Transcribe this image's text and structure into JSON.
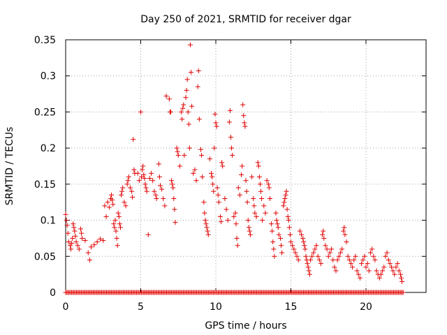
{
  "chart_data": {
    "type": "scatter",
    "title": "Day 250 of 2021, SRMTID for receiver dgar",
    "xlabel": "GPS time / hours",
    "ylabel": "SRMTID / TECUs",
    "xlim": [
      0,
      24
    ],
    "ylim": [
      0,
      0.35
    ],
    "x_ticks": [
      0,
      5,
      10,
      15,
      20
    ],
    "y_ticks": [
      0,
      0.05,
      0.1,
      0.15,
      0.2,
      0.25,
      0.3,
      0.35
    ],
    "x_tick_labels": [
      "0",
      "5",
      "10",
      "15",
      "20"
    ],
    "y_tick_labels": [
      "0",
      "0.05",
      "0.1",
      "0.15",
      "0.2",
      "0.25",
      "0.3",
      "0.35"
    ],
    "grid": true,
    "marker": "plus",
    "series_color": "#e00000",
    "series": [
      {
        "name": "SRMTID",
        "points": [
          [
            0.0,
            0.108
          ],
          [
            0.05,
            0.1
          ],
          [
            0.1,
            0.093
          ],
          [
            0.15,
            0.082
          ],
          [
            0.2,
            0.07
          ],
          [
            0.3,
            0.065
          ],
          [
            0.35,
            0.06
          ],
          [
            0.4,
            0.068
          ],
          [
            0.45,
            0.075
          ],
          [
            0.5,
            0.095
          ],
          [
            0.55,
            0.09
          ],
          [
            0.6,
            0.085
          ],
          [
            0.65,
            0.078
          ],
          [
            0.7,
            0.07
          ],
          [
            0.8,
            0.065
          ],
          [
            0.9,
            0.06
          ],
          [
            1.0,
            0.088
          ],
          [
            1.05,
            0.082
          ],
          [
            1.1,
            0.075
          ],
          [
            1.3,
            0.072
          ],
          [
            1.5,
            0.055
          ],
          [
            1.6,
            0.045
          ],
          [
            1.7,
            0.063
          ],
          [
            1.9,
            0.066
          ],
          [
            2.1,
            0.07
          ],
          [
            2.3,
            0.074
          ],
          [
            2.5,
            0.072
          ],
          [
            2.6,
            0.12
          ],
          [
            2.7,
            0.105
          ],
          [
            2.8,
            0.125
          ],
          [
            2.9,
            0.118
          ],
          [
            3.0,
            0.13
          ],
          [
            3.05,
            0.135
          ],
          [
            3.1,
            0.128
          ],
          [
            3.15,
            0.122
          ],
          [
            3.2,
            0.095
          ],
          [
            3.25,
            0.09
          ],
          [
            3.3,
            0.1
          ],
          [
            3.35,
            0.085
          ],
          [
            3.4,
            0.075
          ],
          [
            3.45,
            0.065
          ],
          [
            3.5,
            0.11
          ],
          [
            3.55,
            0.105
          ],
          [
            3.6,
            0.095
          ],
          [
            3.65,
            0.09
          ],
          [
            3.7,
            0.135
          ],
          [
            3.75,
            0.14
          ],
          [
            3.8,
            0.145
          ],
          [
            3.9,
            0.125
          ],
          [
            4.0,
            0.12
          ],
          [
            4.1,
            0.15
          ],
          [
            4.15,
            0.155
          ],
          [
            4.2,
            0.16
          ],
          [
            4.3,
            0.145
          ],
          [
            4.4,
            0.14
          ],
          [
            4.45,
            0.132
          ],
          [
            4.5,
            0.212
          ],
          [
            4.55,
            0.17
          ],
          [
            4.6,
            0.165
          ],
          [
            4.8,
            0.165
          ],
          [
            4.9,
            0.155
          ],
          [
            5.0,
            0.25
          ],
          [
            5.05,
            0.16
          ],
          [
            5.1,
            0.17
          ],
          [
            5.15,
            0.175
          ],
          [
            5.2,
            0.163
          ],
          [
            5.25,
            0.158
          ],
          [
            5.3,
            0.15
          ],
          [
            5.35,
            0.145
          ],
          [
            5.4,
            0.14
          ],
          [
            5.5,
            0.08
          ],
          [
            5.6,
            0.158
          ],
          [
            5.7,
            0.165
          ],
          [
            5.8,
            0.155
          ],
          [
            5.9,
            0.14
          ],
          [
            6.0,
            0.135
          ],
          [
            6.05,
            0.13
          ],
          [
            6.2,
            0.178
          ],
          [
            6.25,
            0.16
          ],
          [
            6.3,
            0.148
          ],
          [
            6.4,
            0.143
          ],
          [
            6.5,
            0.13
          ],
          [
            6.6,
            0.12
          ],
          [
            6.7,
            0.272
          ],
          [
            6.9,
            0.268
          ],
          [
            6.95,
            0.25
          ],
          [
            7.0,
            0.25
          ],
          [
            7.05,
            0.155
          ],
          [
            7.1,
            0.15
          ],
          [
            7.15,
            0.145
          ],
          [
            7.2,
            0.13
          ],
          [
            7.25,
            0.115
          ],
          [
            7.3,
            0.097
          ],
          [
            7.4,
            0.2
          ],
          [
            7.45,
            0.195
          ],
          [
            7.5,
            0.19
          ],
          [
            7.6,
            0.175
          ],
          [
            7.7,
            0.25
          ],
          [
            7.75,
            0.24
          ],
          [
            7.8,
            0.255
          ],
          [
            7.85,
            0.26
          ],
          [
            7.9,
            0.19
          ],
          [
            8.0,
            0.27
          ],
          [
            8.05,
            0.28
          ],
          [
            8.1,
            0.295
          ],
          [
            8.15,
            0.25
          ],
          [
            8.2,
            0.233
          ],
          [
            8.25,
            0.2
          ],
          [
            8.3,
            0.343
          ],
          [
            8.35,
            0.305
          ],
          [
            8.4,
            0.258
          ],
          [
            8.5,
            0.165
          ],
          [
            8.6,
            0.17
          ],
          [
            8.7,
            0.155
          ],
          [
            8.8,
            0.285
          ],
          [
            8.85,
            0.307
          ],
          [
            8.9,
            0.24
          ],
          [
            9.0,
            0.198
          ],
          [
            9.05,
            0.19
          ],
          [
            9.1,
            0.16
          ],
          [
            9.2,
            0.125
          ],
          [
            9.25,
            0.11
          ],
          [
            9.3,
            0.1
          ],
          [
            9.35,
            0.095
          ],
          [
            9.4,
            0.09
          ],
          [
            9.45,
            0.085
          ],
          [
            9.5,
            0.08
          ],
          [
            9.6,
            0.185
          ],
          [
            9.7,
            0.165
          ],
          [
            9.75,
            0.16
          ],
          [
            9.8,
            0.15
          ],
          [
            9.85,
            0.14
          ],
          [
            9.9,
            0.2
          ],
          [
            9.95,
            0.247
          ],
          [
            10.0,
            0.235
          ],
          [
            10.05,
            0.23
          ],
          [
            10.1,
            0.145
          ],
          [
            10.15,
            0.135
          ],
          [
            10.2,
            0.125
          ],
          [
            10.3,
            0.105
          ],
          [
            10.35,
            0.098
          ],
          [
            10.4,
            0.18
          ],
          [
            10.45,
            0.175
          ],
          [
            10.6,
            0.13
          ],
          [
            10.7,
            0.115
          ],
          [
            10.8,
            0.1
          ],
          [
            10.9,
            0.236
          ],
          [
            10.95,
            0.252
          ],
          [
            11.0,
            0.215
          ],
          [
            11.05,
            0.2
          ],
          [
            11.1,
            0.19
          ],
          [
            11.2,
            0.105
          ],
          [
            11.3,
            0.11
          ],
          [
            11.35,
            0.095
          ],
          [
            11.4,
            0.075
          ],
          [
            11.45,
            0.065
          ],
          [
            11.5,
            0.145
          ],
          [
            11.6,
            0.135
          ],
          [
            11.7,
            0.163
          ],
          [
            11.75,
            0.175
          ],
          [
            11.8,
            0.26
          ],
          [
            11.85,
            0.245
          ],
          [
            11.9,
            0.235
          ],
          [
            11.95,
            0.23
          ],
          [
            12.0,
            0.155
          ],
          [
            12.05,
            0.14
          ],
          [
            12.1,
            0.125
          ],
          [
            12.15,
            0.1
          ],
          [
            12.2,
            0.09
          ],
          [
            12.25,
            0.085
          ],
          [
            12.3,
            0.08
          ],
          [
            12.4,
            0.16
          ],
          [
            12.5,
            0.13
          ],
          [
            12.55,
            0.12
          ],
          [
            12.6,
            0.11
          ],
          [
            12.7,
            0.105
          ],
          [
            12.8,
            0.18
          ],
          [
            12.85,
            0.175
          ],
          [
            12.9,
            0.16
          ],
          [
            12.95,
            0.15
          ],
          [
            13.0,
            0.14
          ],
          [
            13.05,
            0.13
          ],
          [
            13.1,
            0.1
          ],
          [
            13.2,
            0.12
          ],
          [
            13.3,
            0.11
          ],
          [
            13.4,
            0.155
          ],
          [
            13.5,
            0.15
          ],
          [
            13.55,
            0.145
          ],
          [
            13.6,
            0.13
          ],
          [
            13.7,
            0.095
          ],
          [
            13.75,
            0.085
          ],
          [
            13.8,
            0.07
          ],
          [
            13.85,
            0.06
          ],
          [
            13.9,
            0.05
          ],
          [
            14.0,
            0.11
          ],
          [
            14.05,
            0.1
          ],
          [
            14.1,
            0.095
          ],
          [
            14.15,
            0.09
          ],
          [
            14.2,
            0.08
          ],
          [
            14.3,
            0.075
          ],
          [
            14.35,
            0.065
          ],
          [
            14.4,
            0.055
          ],
          [
            14.5,
            0.12
          ],
          [
            14.55,
            0.125
          ],
          [
            14.6,
            0.13
          ],
          [
            14.65,
            0.135
          ],
          [
            14.7,
            0.14
          ],
          [
            14.75,
            0.115
          ],
          [
            14.8,
            0.105
          ],
          [
            14.85,
            0.1
          ],
          [
            14.9,
            0.09
          ],
          [
            14.95,
            0.08
          ],
          [
            15.0,
            0.07
          ],
          [
            15.1,
            0.065
          ],
          [
            15.2,
            0.06
          ],
          [
            15.3,
            0.055
          ],
          [
            15.4,
            0.05
          ],
          [
            15.5,
            0.045
          ],
          [
            15.6,
            0.085
          ],
          [
            15.7,
            0.08
          ],
          [
            15.8,
            0.075
          ],
          [
            15.85,
            0.07
          ],
          [
            15.9,
            0.065
          ],
          [
            15.95,
            0.06
          ],
          [
            16.0,
            0.05
          ],
          [
            16.05,
            0.045
          ],
          [
            16.1,
            0.04
          ],
          [
            16.15,
            0.035
          ],
          [
            16.2,
            0.03
          ],
          [
            16.25,
            0.025
          ],
          [
            16.3,
            0.045
          ],
          [
            16.4,
            0.05
          ],
          [
            16.5,
            0.055
          ],
          [
            16.6,
            0.06
          ],
          [
            16.7,
            0.065
          ],
          [
            16.8,
            0.05
          ],
          [
            16.9,
            0.045
          ],
          [
            17.0,
            0.04
          ],
          [
            17.1,
            0.08
          ],
          [
            17.15,
            0.085
          ],
          [
            17.2,
            0.075
          ],
          [
            17.3,
            0.065
          ],
          [
            17.4,
            0.06
          ],
          [
            17.5,
            0.05
          ],
          [
            17.6,
            0.055
          ],
          [
            17.7,
            0.06
          ],
          [
            17.8,
            0.045
          ],
          [
            17.9,
            0.035
          ],
          [
            18.0,
            0.03
          ],
          [
            18.1,
            0.045
          ],
          [
            18.2,
            0.05
          ],
          [
            18.3,
            0.055
          ],
          [
            18.4,
            0.06
          ],
          [
            18.5,
            0.085
          ],
          [
            18.55,
            0.09
          ],
          [
            18.6,
            0.08
          ],
          [
            18.7,
            0.07
          ],
          [
            18.8,
            0.05
          ],
          [
            18.9,
            0.045
          ],
          [
            19.0,
            0.04
          ],
          [
            19.1,
            0.035
          ],
          [
            19.2,
            0.045
          ],
          [
            19.3,
            0.05
          ],
          [
            19.4,
            0.03
          ],
          [
            19.5,
            0.025
          ],
          [
            19.6,
            0.02
          ],
          [
            19.7,
            0.04
          ],
          [
            19.8,
            0.045
          ],
          [
            19.9,
            0.05
          ],
          [
            20.0,
            0.035
          ],
          [
            20.1,
            0.04
          ],
          [
            20.2,
            0.03
          ],
          [
            20.3,
            0.055
          ],
          [
            20.4,
            0.06
          ],
          [
            20.5,
            0.05
          ],
          [
            20.6,
            0.045
          ],
          [
            20.7,
            0.03
          ],
          [
            20.8,
            0.025
          ],
          [
            20.9,
            0.02
          ],
          [
            21.0,
            0.025
          ],
          [
            21.1,
            0.03
          ],
          [
            21.2,
            0.035
          ],
          [
            21.3,
            0.05
          ],
          [
            21.4,
            0.055
          ],
          [
            21.5,
            0.045
          ],
          [
            21.6,
            0.04
          ],
          [
            21.7,
            0.035
          ],
          [
            21.8,
            0.03
          ],
          [
            21.9,
            0.025
          ],
          [
            22.0,
            0.035
          ],
          [
            22.1,
            0.04
          ],
          [
            22.2,
            0.03
          ],
          [
            22.3,
            0.025
          ],
          [
            22.35,
            0.02
          ],
          [
            22.4,
            0.015
          ]
        ]
      }
    ],
    "baseline_zero_range": [
      0,
      22.5
    ]
  }
}
